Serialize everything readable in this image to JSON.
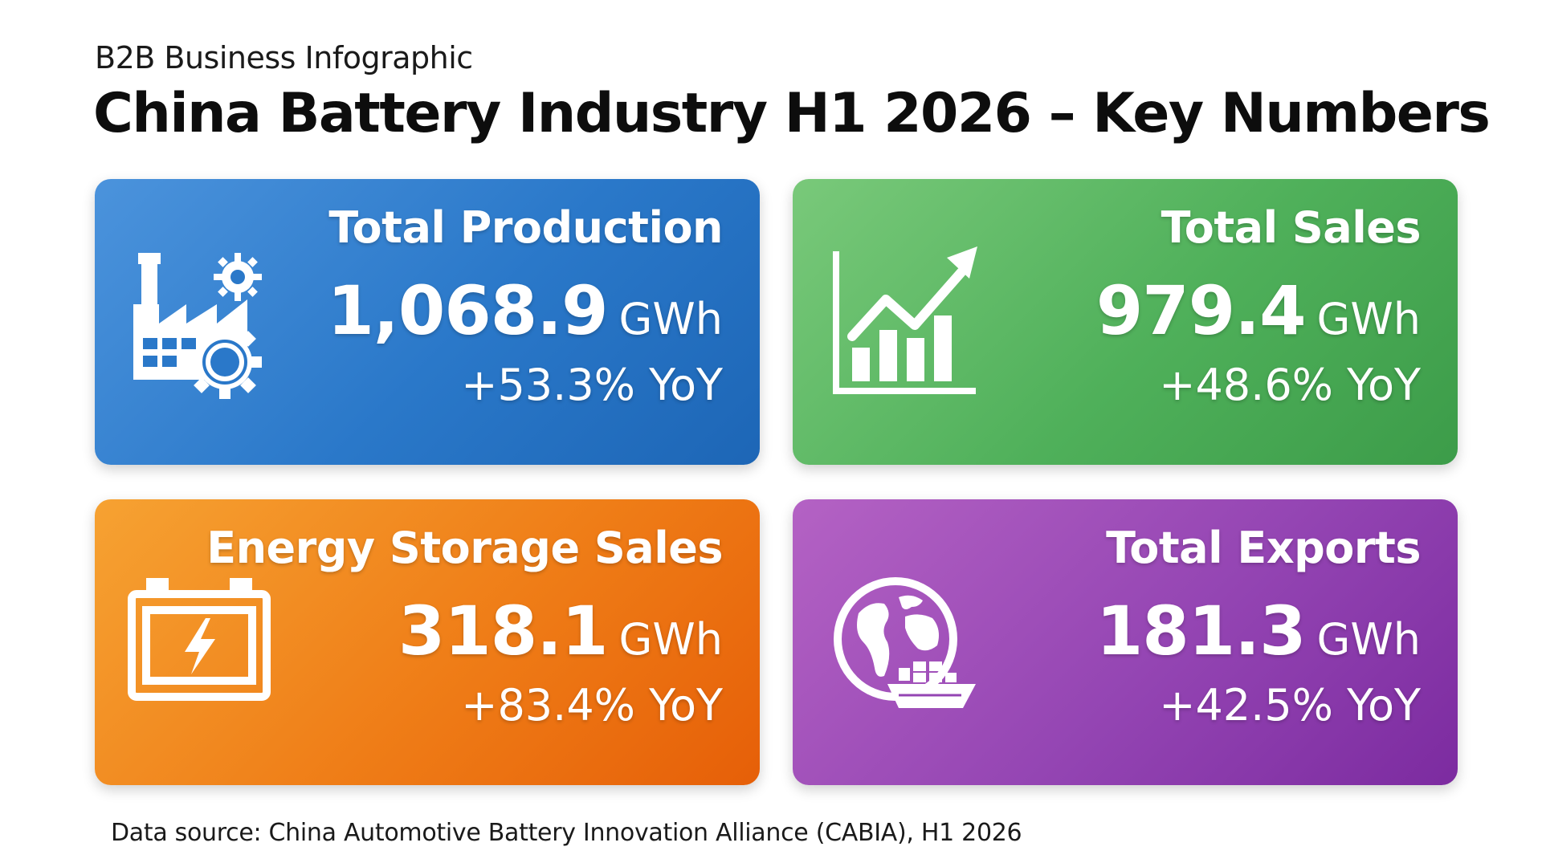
{
  "header": {
    "subtitle": "B2B Business Infographic",
    "title": "China Battery Industry H1 2026 – Key Numbers"
  },
  "cards": [
    {
      "label": "Total Production",
      "value": "1,068.9",
      "unit": "GWh",
      "change": "+53.3% YoY",
      "color": "#2a78c9",
      "icon": "factory-gear-icon"
    },
    {
      "label": "Total Sales",
      "value": "979.4",
      "unit": "GWh",
      "change": "+48.6% YoY",
      "color": "#4fb05a",
      "icon": "growth-chart-icon"
    },
    {
      "label": "Energy Storage Sales",
      "value": "318.1",
      "unit": "GWh",
      "change": "+83.4% YoY",
      "color": "#ef7d17",
      "icon": "battery-icon"
    },
    {
      "label": "Total Exports",
      "value": "181.3",
      "unit": "GWh",
      "change": "+42.5% YoY",
      "color": "#9445b3",
      "icon": "globe-ship-icon"
    }
  ],
  "footer": {
    "source": "Data source: China Automotive Battery Innovation Alliance (CABIA), H1 2026"
  }
}
